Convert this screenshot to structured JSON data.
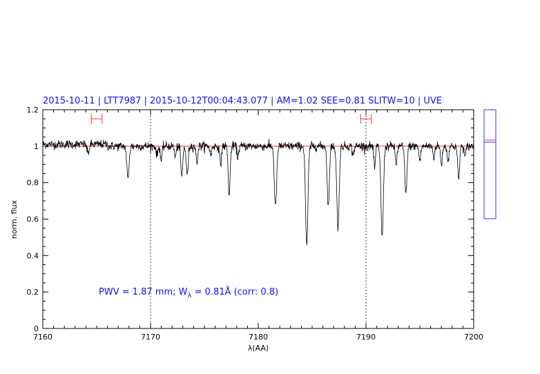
{
  "chart_data": {
    "type": "line",
    "title": "2015-10-11 | LTT7987 | 2015-10-12T00:04:43.077 | AM=1.02  SEE=0.81  SLITW=10 | UVE",
    "xlabel": "λ(AA)",
    "ylabel": "norm. flux",
    "xlim": [
      7160,
      7200
    ],
    "ylim": [
      0,
      1.2
    ],
    "x_ticks": [
      7160,
      7170,
      7180,
      7190,
      7200
    ],
    "y_ticks": [
      0,
      0.2,
      0.4,
      0.6,
      0.8,
      1,
      1.2
    ],
    "x_tick_labels": [
      "7160",
      "7170",
      "7180",
      "7190",
      "7200"
    ],
    "y_tick_labels": [
      "0",
      "0.2",
      "0.4",
      "0.6",
      "0.8",
      "1",
      "1.2"
    ],
    "continuum_level": 1.0,
    "reference_lines_x": [
      7170,
      7190
    ],
    "colors": {
      "spectrum": "#000000",
      "continuum": "#ff3030",
      "markers": "#ff3030",
      "text": "#1010ee",
      "inset": "#3030ff"
    },
    "range_markers": [
      {
        "x_start": 7164.5,
        "x_end": 7165.5,
        "y": 1.15
      },
      {
        "x_start": 7189.5,
        "x_end": 7190.5,
        "y": 1.15
      }
    ],
    "absorption_lines": [
      {
        "x": 7164.2,
        "depth": 0.05,
        "width": 0.1
      },
      {
        "x": 7167.9,
        "depth": 0.18,
        "width": 0.1
      },
      {
        "x": 7170.6,
        "depth": 0.05,
        "width": 0.08
      },
      {
        "x": 7171.0,
        "depth": 0.08,
        "width": 0.08
      },
      {
        "x": 7172.3,
        "depth": 0.06,
        "width": 0.08
      },
      {
        "x": 7172.9,
        "depth": 0.17,
        "width": 0.09
      },
      {
        "x": 7173.4,
        "depth": 0.16,
        "width": 0.09
      },
      {
        "x": 7174.3,
        "depth": 0.09,
        "width": 0.08
      },
      {
        "x": 7175.6,
        "depth": 0.05,
        "width": 0.08
      },
      {
        "x": 7176.5,
        "depth": 0.1,
        "width": 0.08
      },
      {
        "x": 7177.3,
        "depth": 0.27,
        "width": 0.09
      },
      {
        "x": 7178.1,
        "depth": 0.06,
        "width": 0.08
      },
      {
        "x": 7181.6,
        "depth": 0.33,
        "width": 0.11
      },
      {
        "x": 7184.5,
        "depth": 0.55,
        "width": 0.11
      },
      {
        "x": 7186.5,
        "depth": 0.33,
        "width": 0.1
      },
      {
        "x": 7187.4,
        "depth": 0.45,
        "width": 0.11
      },
      {
        "x": 7188.8,
        "depth": 0.05,
        "width": 0.08
      },
      {
        "x": 7190.8,
        "depth": 0.12,
        "width": 0.08
      },
      {
        "x": 7191.5,
        "depth": 0.5,
        "width": 0.11
      },
      {
        "x": 7192.8,
        "depth": 0.1,
        "width": 0.08
      },
      {
        "x": 7193.7,
        "depth": 0.26,
        "width": 0.1
      },
      {
        "x": 7195.0,
        "depth": 0.08,
        "width": 0.08
      },
      {
        "x": 7196.3,
        "depth": 0.06,
        "width": 0.08
      },
      {
        "x": 7197.0,
        "depth": 0.1,
        "width": 0.08
      },
      {
        "x": 7197.6,
        "depth": 0.08,
        "width": 0.08
      },
      {
        "x": 7198.6,
        "depth": 0.18,
        "width": 0.09
      },
      {
        "x": 7199.2,
        "depth": 0.06,
        "width": 0.08
      }
    ],
    "noise_sigma": 0.012,
    "annotation": {
      "prefix": "PWV  =  1.87  mm;  W",
      "subscript": "λ",
      "suffix": "  =  0.81Å  (corr:  0.8)"
    }
  }
}
